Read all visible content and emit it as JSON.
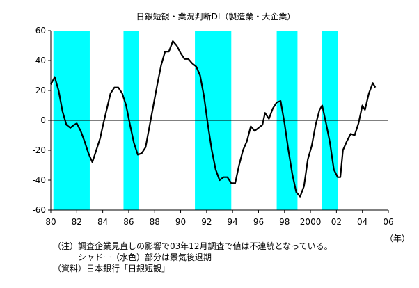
{
  "chart_data": {
    "type": "line",
    "title": "日銀短観・業況判断DI（製造業・大企業）",
    "xlabel": "（年）",
    "ylabel": "",
    "ylim": [
      -60,
      60
    ],
    "yticks": [
      60,
      40,
      20,
      0,
      -20,
      -40,
      -60
    ],
    "xlim": [
      1980,
      2006
    ],
    "xtick_labels": [
      "80",
      "82",
      "84",
      "86",
      "88",
      "90",
      "92",
      "94",
      "96",
      "98",
      "2000",
      "02",
      "04",
      "06"
    ],
    "grid": false,
    "recession_shading": [
      {
        "start": 1980.2,
        "end": 1983.0
      },
      {
        "start": 1985.6,
        "end": 1986.8
      },
      {
        "start": 1991.1,
        "end": 1993.9
      },
      {
        "start": 1997.4,
        "end": 1999.0
      },
      {
        "start": 2000.9,
        "end": 2002.1
      }
    ],
    "series": [
      {
        "points": [
          [
            1980.0,
            24
          ],
          [
            1980.3,
            29
          ],
          [
            1980.6,
            20
          ],
          [
            1980.9,
            6
          ],
          [
            1981.2,
            -3
          ],
          [
            1981.5,
            -5
          ],
          [
            1981.8,
            -3
          ],
          [
            1982.0,
            -2
          ],
          [
            1982.3,
            -7
          ],
          [
            1982.6,
            -14
          ],
          [
            1982.9,
            -22
          ],
          [
            1983.2,
            -28
          ],
          [
            1983.5,
            -20
          ],
          [
            1983.8,
            -12
          ],
          [
            1984.0,
            -4
          ],
          [
            1984.3,
            7
          ],
          [
            1984.6,
            18
          ],
          [
            1984.9,
            22
          ],
          [
            1985.2,
            22
          ],
          [
            1985.5,
            18
          ],
          [
            1985.8,
            10
          ],
          [
            1986.1,
            -3
          ],
          [
            1986.4,
            -15
          ],
          [
            1986.7,
            -23
          ],
          [
            1987.0,
            -22
          ],
          [
            1987.3,
            -18
          ],
          [
            1987.6,
            -4
          ],
          [
            1987.9,
            10
          ],
          [
            1988.2,
            24
          ],
          [
            1988.5,
            37
          ],
          [
            1988.8,
            46
          ],
          [
            1989.1,
            46
          ],
          [
            1989.4,
            53
          ],
          [
            1989.7,
            50
          ],
          [
            1990.0,
            45
          ],
          [
            1990.3,
            41
          ],
          [
            1990.6,
            41
          ],
          [
            1990.9,
            38
          ],
          [
            1991.2,
            36
          ],
          [
            1991.5,
            30
          ],
          [
            1991.8,
            16
          ],
          [
            1992.1,
            -3
          ],
          [
            1992.4,
            -20
          ],
          [
            1992.7,
            -33
          ],
          [
            1993.0,
            -40
          ],
          [
            1993.3,
            -38
          ],
          [
            1993.6,
            -38
          ],
          [
            1993.9,
            -42
          ],
          [
            1994.2,
            -42
          ],
          [
            1994.5,
            -30
          ],
          [
            1994.8,
            -20
          ],
          [
            1995.1,
            -14
          ],
          [
            1995.4,
            -4
          ],
          [
            1995.7,
            -7
          ],
          [
            1996.0,
            -5
          ],
          [
            1996.3,
            -3
          ],
          [
            1996.5,
            5
          ],
          [
            1996.8,
            1
          ],
          [
            1997.1,
            8
          ],
          [
            1997.4,
            12
          ],
          [
            1997.7,
            13
          ],
          [
            1998.0,
            -2
          ],
          [
            1998.3,
            -20
          ],
          [
            1998.6,
            -36
          ],
          [
            1998.9,
            -48
          ],
          [
            1999.2,
            -51
          ],
          [
            1999.5,
            -44
          ],
          [
            1999.8,
            -26
          ],
          [
            2000.1,
            -17
          ],
          [
            2000.4,
            -3
          ],
          [
            2000.7,
            7
          ],
          [
            2000.9,
            10
          ],
          [
            2001.2,
            -2
          ],
          [
            2001.5,
            -15
          ],
          [
            2001.8,
            -33
          ],
          [
            2002.1,
            -38
          ],
          [
            2002.3,
            -38
          ],
          [
            2002.5,
            -20
          ],
          [
            2002.8,
            -14
          ],
          [
            2003.1,
            -9
          ],
          [
            2003.4,
            -10
          ],
          [
            2003.7,
            -2
          ],
          [
            2004.0,
            10
          ],
          [
            2004.2,
            7
          ],
          [
            2004.5,
            18
          ],
          [
            2004.8,
            25
          ],
          [
            2005.0,
            22
          ]
        ]
      }
    ]
  },
  "notes": [
    "（注）調査企業見直しの影響で03年12月調査で値は不連続となっている。",
    "　　　シャドー（水色）部分は景気後退期",
    "（資料）日本銀行「日銀短観」"
  ],
  "colors": {
    "shade": "#00FFFF",
    "line": "#000000",
    "axis": "#000000"
  }
}
